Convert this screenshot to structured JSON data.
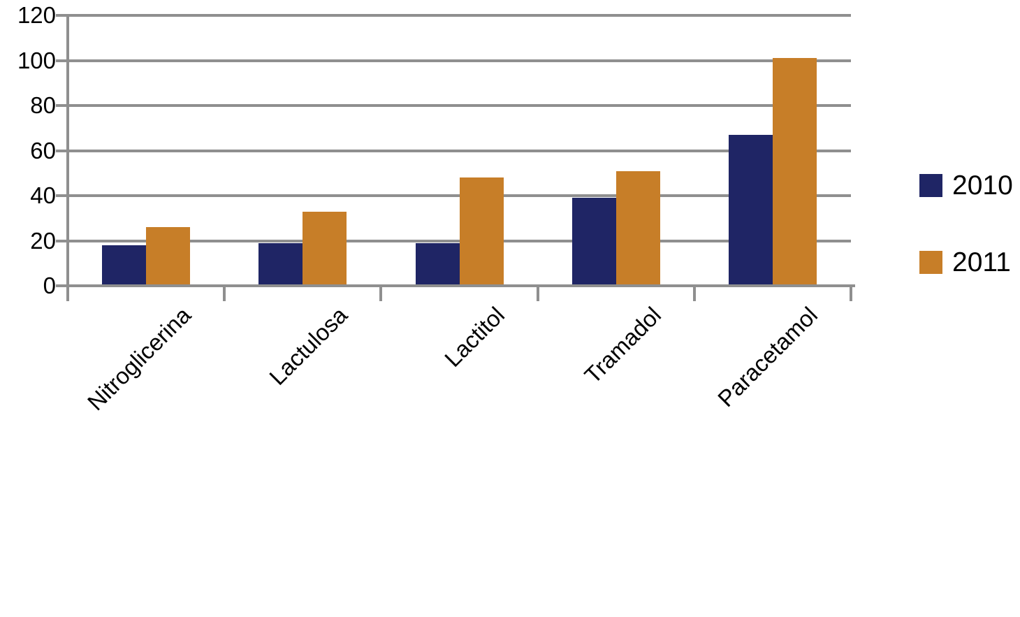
{
  "chart_data": {
    "type": "bar",
    "categories": [
      "Nitroglicerina",
      "Lactulosa",
      "Lactitol",
      "Tramadol",
      "Paracetamol"
    ],
    "series": [
      {
        "name": "2010",
        "color": "#1F2565",
        "values": [
          18,
          19,
          19,
          39,
          67
        ]
      },
      {
        "name": "2011",
        "color": "#C77E28",
        "values": [
          26,
          33,
          48,
          51,
          101
        ]
      }
    ],
    "title": "",
    "xlabel": "",
    "ylabel": "",
    "ylim": [
      0,
      120
    ],
    "ytick_step": 20,
    "ytick_labels": [
      "0",
      "20",
      "40",
      "60",
      "80",
      "100",
      "120"
    ],
    "grid": true,
    "legend_position": "right",
    "grid_color": "#8F8F8F",
    "axis_color": "#8F8F8F",
    "text_color": "#000000",
    "background_color": "#FFFFFF"
  }
}
